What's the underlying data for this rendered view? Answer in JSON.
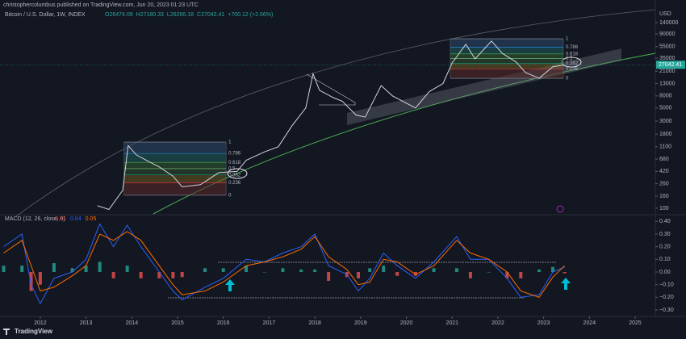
{
  "attribution": "christophercolumbus published on TradingView.com, Jun 20, 2023 01:23 UTC",
  "brand": "TradingView",
  "chart_data": [
    {
      "type": "line",
      "title": "Bitcoin / U.S. Dollar, 1W, INDEX",
      "ohlc_labels": [
        "O26474.09",
        "H27180.33",
        "L26266.18",
        "C27042.41",
        "+700.12 (+2.66%)"
      ],
      "y_axis_label": "USD",
      "log_scale": true,
      "color": "#d1d4dc",
      "x": [
        2013.25,
        2013.5,
        2013.8,
        2013.92,
        2014.1,
        2014.4,
        2014.6,
        2014.9,
        2015.1,
        2015.5,
        2015.9,
        2016.3,
        2016.5,
        2016.9,
        2017.2,
        2017.5,
        2017.8,
        2017.96,
        2018.1,
        2018.4,
        2018.6,
        2018.9,
        2019.1,
        2019.45,
        2019.7,
        2020.2,
        2020.5,
        2020.8,
        2021.0,
        2021.3,
        2021.5,
        2021.86,
        2022.1,
        2022.4,
        2022.6,
        2022.9,
        2023.2,
        2023.46
      ],
      "values": [
        110,
        95,
        200,
        1150,
        800,
        600,
        500,
        350,
        230,
        250,
        400,
        420,
        650,
        900,
        1100,
        2500,
        5000,
        19000,
        10000,
        7500,
        6500,
        3800,
        3500,
        12000,
        8000,
        5000,
        9500,
        13000,
        29000,
        60000,
        34000,
        68000,
        42000,
        30000,
        20000,
        16000,
        25000,
        27042
      ],
      "last_price": 27042.41,
      "xlim": [
        2011.12,
        2025.44
      ],
      "ylim": [
        80,
        232000
      ],
      "yticks": [
        140000,
        90000,
        55000,
        35000,
        21000,
        13000,
        8000,
        5000,
        3000,
        1800,
        1100,
        680,
        420,
        260,
        160,
        100
      ],
      "fib_retracements": [
        {
          "x": [
            2013.83,
            2016.06
          ],
          "high": 1320,
          "low": 166,
          "levels": [
            1,
            0.786,
            0.618,
            0.5,
            0.382,
            0.236,
            0
          ]
        },
        {
          "x": [
            2020.96,
            2023.43
          ],
          "high": 74500,
          "low": 15900,
          "levels": [
            1,
            0.786,
            0.618,
            0.5,
            0.382,
            0.236,
            0
          ]
        }
      ]
    },
    {
      "type": "line",
      "title": "MACD (12, 26, close, 9)",
      "legend_values": [
        "-0.01",
        "0.04",
        "0.05"
      ],
      "x": [
        2011.2,
        2011.6,
        2011.8,
        2012.0,
        2012.3,
        2012.7,
        2013.0,
        2013.3,
        2013.6,
        2013.9,
        2014.2,
        2014.6,
        2014.9,
        2015.1,
        2015.6,
        2016.0,
        2016.5,
        2016.9,
        2017.3,
        2017.7,
        2018.0,
        2018.3,
        2018.7,
        2018.95,
        2019.2,
        2019.5,
        2019.8,
        2020.2,
        2020.6,
        2021.1,
        2021.4,
        2021.8,
        2022.2,
        2022.5,
        2022.9,
        2023.2,
        2023.46
      ],
      "series": [
        {
          "type": "bar",
          "color": "#26a69a",
          "negative_color": "#ef5350",
          "values": [
            0.05,
            0.05,
            -0.15,
            -0.1,
            0.07,
            0.03,
            0.05,
            0.08,
            -0.05,
            0.05,
            -0.05,
            -0.05,
            -0.05,
            -0.04,
            0.03,
            0.03,
            0.05,
            0.0,
            0.03,
            0.02,
            0.02,
            -0.07,
            -0.04,
            -0.05,
            0.03,
            0.05,
            -0.03,
            -0.03,
            0.03,
            0.03,
            -0.05,
            0.0,
            -0.05,
            -0.05,
            0.02,
            0.04,
            -0.01
          ]
        },
        {
          "type": "line",
          "color": "#2962ff",
          "values": [
            0.2,
            0.3,
            -0.1,
            -0.25,
            -0.05,
            0.0,
            0.1,
            0.38,
            0.2,
            0.37,
            0.2,
            0.0,
            -0.15,
            -0.22,
            -0.12,
            -0.05,
            0.1,
            0.08,
            0.15,
            0.2,
            0.3,
            0.05,
            -0.02,
            -0.15,
            -0.05,
            0.15,
            0.05,
            -0.05,
            0.08,
            0.28,
            0.1,
            0.1,
            -0.05,
            -0.2,
            -0.18,
            0.0,
            0.04
          ]
        },
        {
          "type": "line",
          "color": "#ff6d00",
          "values": [
            0.15,
            0.25,
            0.05,
            -0.15,
            -0.12,
            -0.03,
            0.05,
            0.3,
            0.25,
            0.32,
            0.25,
            0.05,
            -0.1,
            -0.18,
            -0.15,
            -0.08,
            0.05,
            0.08,
            0.12,
            0.18,
            0.28,
            0.12,
            0.02,
            -0.1,
            -0.08,
            0.1,
            0.08,
            -0.02,
            0.05,
            0.25,
            0.15,
            0.1,
            0.0,
            -0.15,
            -0.2,
            -0.04,
            0.05
          ]
        }
      ],
      "xlim": [
        2011.12,
        2025.44
      ],
      "ylim": [
        -0.338,
        0.44
      ],
      "yticks": [
        {
          "value": 0.4,
          "label": "0.40"
        },
        {
          "value": 0.3,
          "label": "0.30"
        },
        {
          "value": 0.2,
          "label": "0.20"
        },
        {
          "value": 0.1,
          "label": "0.10"
        },
        {
          "value": 0,
          "label": "0.00"
        },
        {
          "value": -0.1,
          "label": "−0.10"
        },
        {
          "value": -0.2,
          "label": "−0.20"
        },
        {
          "value": -0.3,
          "label": "−0.30"
        }
      ],
      "xticks": [
        2012,
        2013,
        2014,
        2015,
        2016,
        2017,
        2018,
        2019,
        2020,
        2021,
        2022,
        2023,
        2024,
        2025
      ]
    }
  ]
}
